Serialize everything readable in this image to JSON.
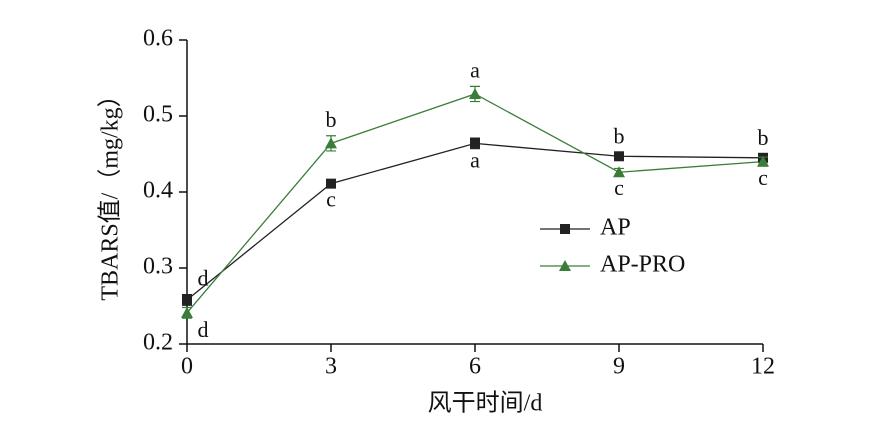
{
  "chart_data": {
    "type": "line",
    "x_label": "风干时间/d",
    "y_label": "TBARS值/（mg/kg）",
    "x": [
      0,
      3,
      6,
      9,
      12
    ],
    "series": [
      {
        "name": "AP",
        "color": "#222222",
        "marker": "square",
        "values": [
          0.258,
          0.411,
          0.464,
          0.447,
          0.445
        ],
        "errors": [
          0.007,
          0.005,
          0.007,
          0.005,
          0.005
        ],
        "labels": [
          "d",
          "c",
          "a",
          "b",
          "b"
        ]
      },
      {
        "name": "AP-PRO",
        "color": "#3a7d3a",
        "marker": "triangle",
        "values": [
          0.241,
          0.464,
          0.529,
          0.426,
          0.44
        ],
        "errors": [
          0.007,
          0.01,
          0.01,
          0.005,
          0.006
        ],
        "labels": [
          "d",
          "b",
          "a",
          "c",
          "c"
        ]
      }
    ],
    "xlim": [
      0,
      12
    ],
    "xticks": [
      0,
      3,
      6,
      9,
      12
    ],
    "ylim": [
      0.2,
      0.6
    ],
    "yticks": [
      0.2,
      0.3,
      0.4,
      0.5,
      0.6
    ],
    "grid": false,
    "legend": "right"
  }
}
